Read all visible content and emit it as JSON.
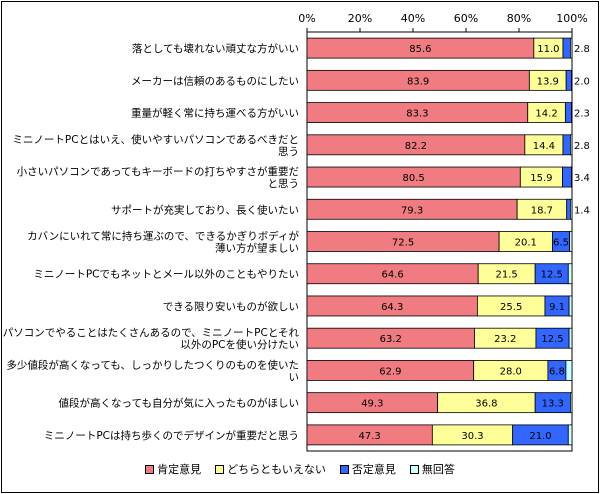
{
  "chart_data": {
    "type": "bar",
    "orientation": "horizontal",
    "stacked": "percent",
    "xlim": [
      0,
      100
    ],
    "x_ticks": [
      "0%",
      "20%",
      "40%",
      "60%",
      "80%",
      "100%"
    ],
    "categories": [
      "落としても壊れない頑丈な方がいい",
      "メーカーは信頼のあるものにしたい",
      "重量が軽く常に持ち運べる方がいい",
      "ミニノートPCとはいえ、使いやすいパソコンであるべきだと思う",
      "小さいパソコンであってもキーボードの打ちやすさが重要だと思う",
      "サポートが充実しており、長く使いたい",
      "カバンにいれて常に持ち運ぶので、できるかぎりボディが薄い方が望ましい",
      "ミニノートPCでもネットとメール以外のこともやりたい",
      "できる限り安いものが欲しい",
      "パソコンでやることはたくさんあるので、ミニノートPCとそれ以外のPCを使い分けたい",
      "多少値段が高くなっても、しっかりしたつくりのものを使いたい",
      "値段が高くなっても自分が気に入ったものがほしい",
      "ミニノートPCは持ち歩くのでデザインが重要だと思う"
    ],
    "category_lines": [
      [
        "落としても壊れない頑丈な方がいい"
      ],
      [
        "メーカーは信頼のあるものにしたい"
      ],
      [
        "重量が軽く常に持ち運べる方がいい"
      ],
      [
        "ミニノートPCとはいえ、使いやすいパソコンであるべきだと",
        "思う"
      ],
      [
        "小さいパソコンであってもキーボードの打ちやすさが重要だ",
        "と思う"
      ],
      [
        "サポートが充実しており、長く使いたい"
      ],
      [
        "カバンにいれて常に持ち運ぶので、できるかぎりボディが",
        "薄い方が望ましい"
      ],
      [
        "ミニノートPCでもネットとメール以外のこともやりたい"
      ],
      [
        "できる限り安いものが欲しい"
      ],
      [
        "パソコンでやることはたくさんあるので、ミニノートPCとそれ",
        "以外のPCを使い分けたい"
      ],
      [
        "多少値段が高くなっても、しっかりしたつくりのものを使いた",
        "い"
      ],
      [
        "値段が高くなっても自分が気に入ったものがほしい"
      ],
      [
        "ミニノートPCは持ち歩くのでデザインが重要だと思う"
      ]
    ],
    "series": [
      {
        "name": "肯定意見",
        "color": "#f07b80",
        "values": [
          85.6,
          83.9,
          83.3,
          82.2,
          80.5,
          79.3,
          72.5,
          64.6,
          64.3,
          63.2,
          62.9,
          49.3,
          47.3
        ],
        "labels": [
          "85.6",
          "83.9",
          "83.3",
          "82.2",
          "80.5",
          "79.3",
          "72.5",
          "64.6",
          "64.3",
          "63.2",
          "62.9",
          "49.3",
          "47.3"
        ]
      },
      {
        "name": "どちらともいえない",
        "color": "#ffff99",
        "values": [
          11.0,
          13.9,
          14.2,
          14.4,
          15.9,
          18.7,
          20.1,
          21.5,
          25.5,
          23.2,
          28.0,
          36.8,
          30.3
        ],
        "labels": [
          "11.0",
          "13.9",
          "14.2",
          "14.4",
          "15.9",
          "18.7",
          "20.1",
          "21.5",
          "25.5",
          "23.2",
          "28.0",
          "36.8",
          "30.3"
        ]
      },
      {
        "name": "否定意見",
        "color": "#3366ff",
        "values": [
          2.8,
          2.0,
          2.3,
          2.8,
          3.4,
          1.4,
          6.5,
          12.5,
          9.1,
          12.5,
          6.8,
          13.3,
          21.0
        ],
        "labels": [
          "2.8",
          "2.0",
          "2.3",
          "2.8",
          "3.4",
          "1.4",
          "6.5",
          "12.5",
          "9.1",
          "12.5",
          "6.8",
          "13.3",
          "21.0"
        ],
        "outside_label": [
          true,
          true,
          true,
          true,
          true,
          true,
          false,
          false,
          false,
          false,
          false,
          false,
          false
        ]
      },
      {
        "name": "無回答",
        "color": "#ccffff",
        "values": [
          0.6,
          0.2,
          0.2,
          0.6,
          0.2,
          0.6,
          0.9,
          1.4,
          1.1,
          1.1,
          2.3,
          0.6,
          1.4
        ],
        "labels": [
          "",
          "",
          "",
          "",
          "",
          "",
          "",
          "",
          "",
          "",
          "",
          "",
          ""
        ]
      }
    ],
    "legend_position": "bottom",
    "grid": false
  }
}
